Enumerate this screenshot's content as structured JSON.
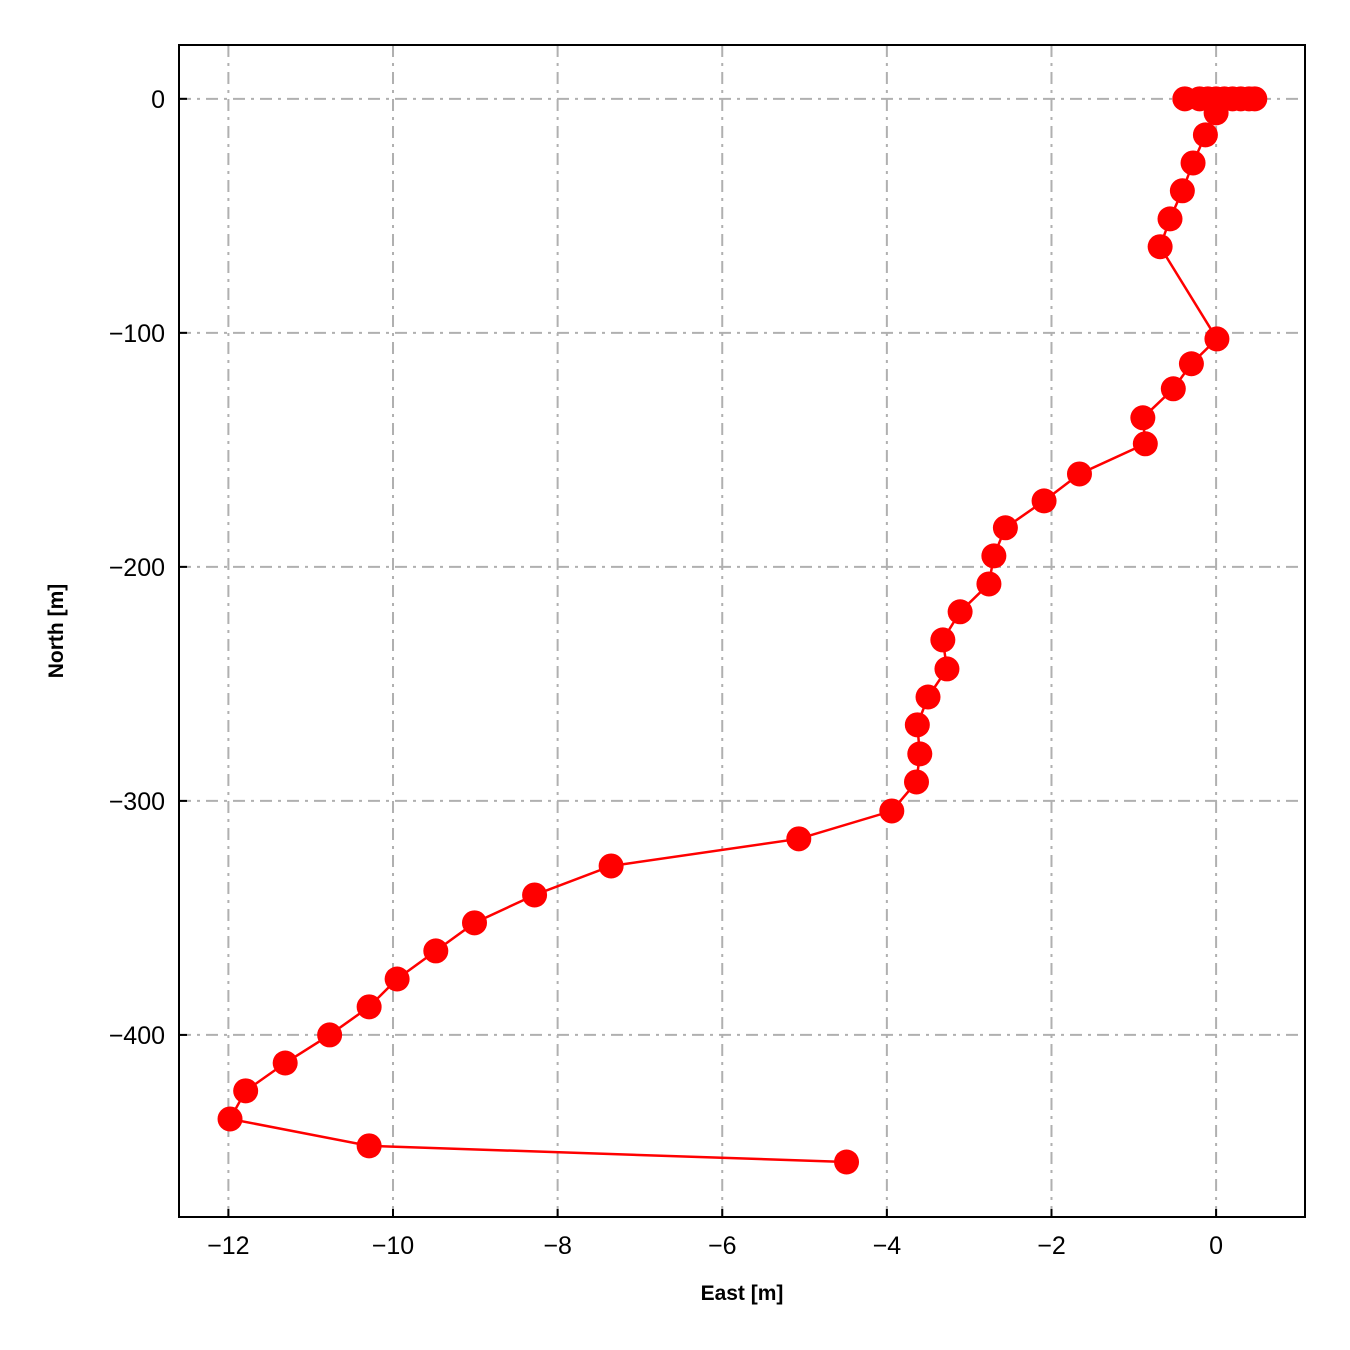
{
  "chart_data": {
    "type": "line",
    "title": "",
    "xlabel": "East [m]",
    "ylabel": "North [m]",
    "xlim": [
      -12.6,
      1.08
    ],
    "ylim": [
      -477.8,
      23
    ],
    "xticks": [
      -12,
      -10,
      -8,
      -6,
      -4,
      -2,
      0
    ],
    "xtick_labels": [
      "−12",
      "−10",
      "−8",
      "−6",
      "−4",
      "−2",
      "0"
    ],
    "yticks": [
      0,
      -100,
      -200,
      -300,
      -400
    ],
    "ytick_labels": [
      "0",
      "−100",
      "−200",
      "−300",
      "−400"
    ],
    "grid": true,
    "grid_style": "dash-dot",
    "grid_color": "#b0b0b0",
    "series": [
      {
        "color": "#ff0000",
        "marker": "circle",
        "x": [
          0.47,
          0.4,
          0.3,
          0.2,
          0.1,
          0.0,
          -0.1,
          -0.2,
          -0.38,
          0.0,
          -0.13,
          -0.28,
          -0.41,
          -0.56,
          -0.68,
          0.01,
          -0.3,
          -0.52,
          -0.89,
          -0.86,
          -1.66,
          -2.09,
          -2.56,
          -2.7,
          -2.76,
          -3.11,
          -3.32,
          -3.27,
          -3.5,
          -3.63,
          -3.6,
          -3.64,
          -3.94,
          -5.07,
          -7.35,
          -8.28,
          -9.01,
          -9.48,
          -9.95,
          -10.29,
          -10.77,
          -11.31,
          -11.79,
          -11.98,
          -10.29,
          -4.49
        ],
        "y": [
          0,
          0,
          0,
          0,
          0,
          0,
          0,
          0,
          0,
          -6,
          -15.4,
          -27.4,
          -39.3,
          -51.3,
          -63.2,
          -102.6,
          -113.2,
          -123.9,
          -136.3,
          -147.4,
          -160.3,
          -171.8,
          -183.3,
          -195.3,
          -207.3,
          -219.2,
          -231.2,
          -243.6,
          -255.6,
          -267.5,
          -279.9,
          -291.9,
          -304.3,
          -316.2,
          -327.8,
          -340.2,
          -352.1,
          -364.1,
          -376.1,
          -388.0,
          -400.0,
          -412.0,
          -423.9,
          -435.9,
          -447.4,
          -454.3
        ]
      }
    ]
  }
}
